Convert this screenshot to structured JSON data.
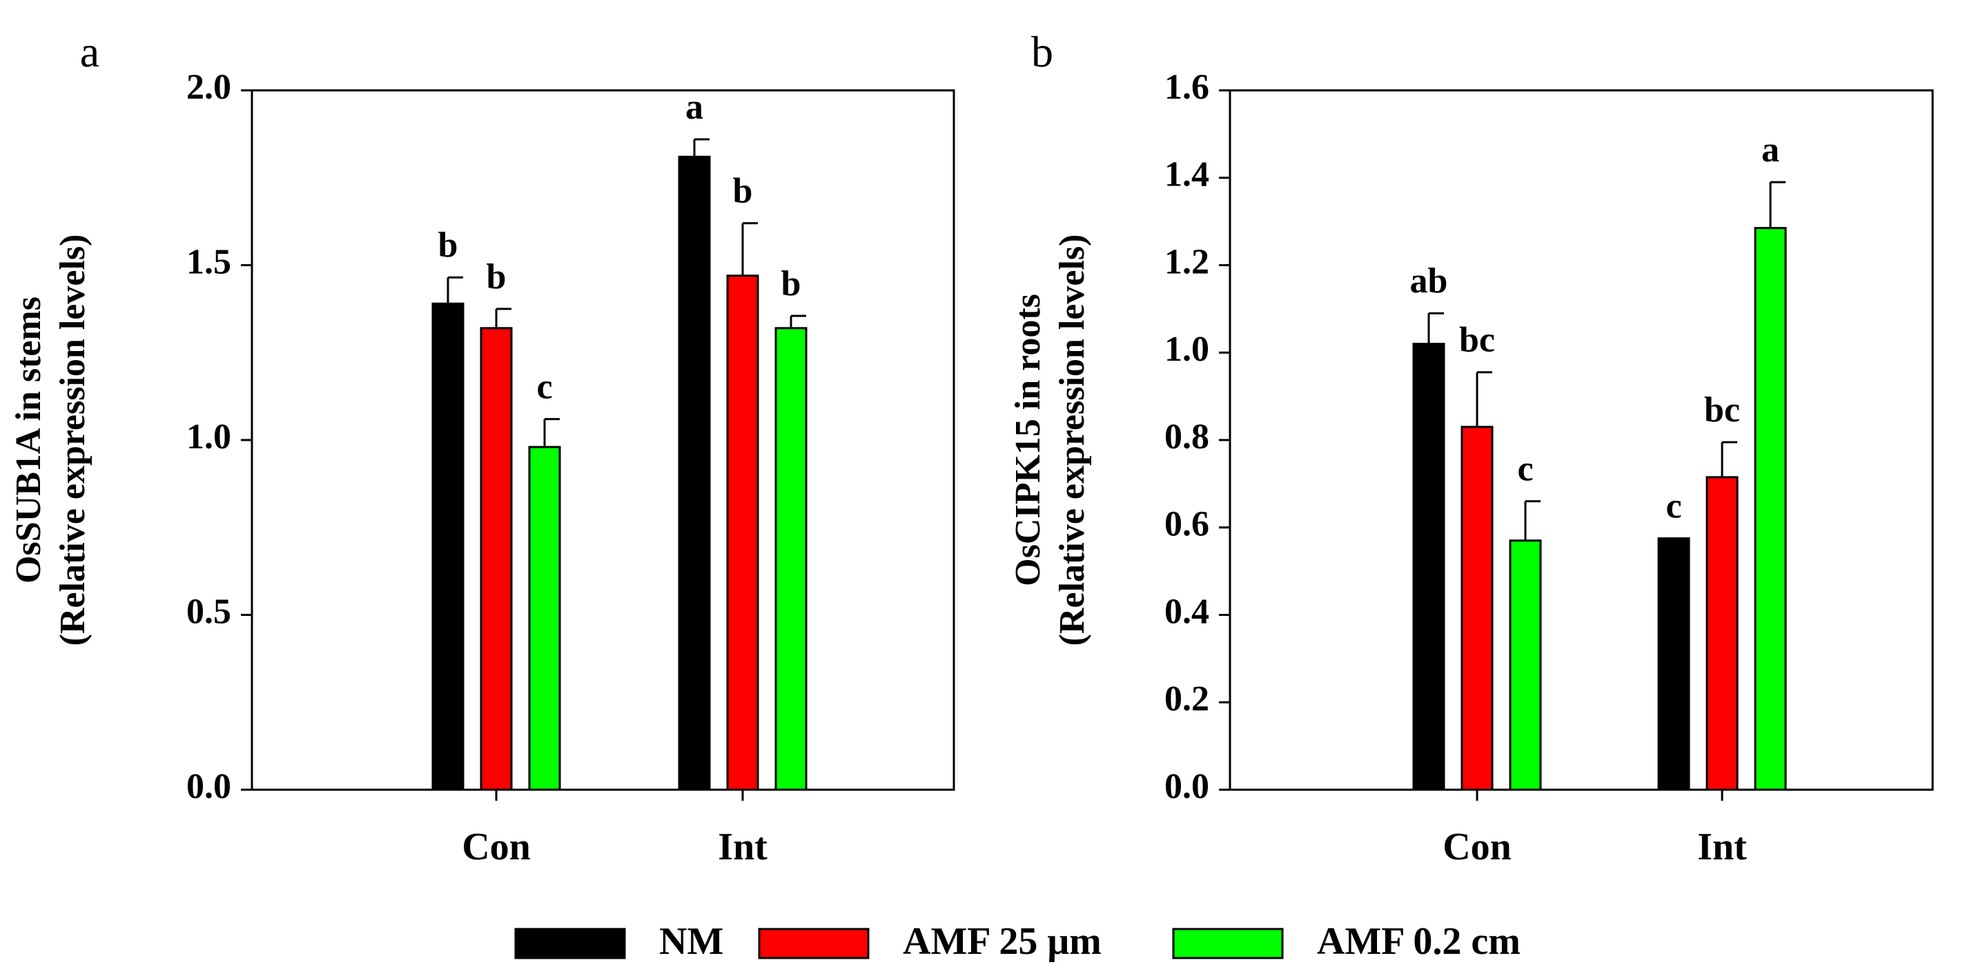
{
  "legend": [
    {
      "name": "NM",
      "color": "#000000"
    },
    {
      "name": "AMF 25 μm",
      "color": "#ff0000"
    },
    {
      "name": "AMF 0.2 cm",
      "color": "#00ff00"
    }
  ],
  "chart_data": [
    {
      "type": "bar",
      "panel": "a",
      "title": "",
      "ylabel_line1": "OsSUB1A in stems",
      "ylabel_line2": "(Relative expression levels)",
      "xlabel": "",
      "categories": [
        "Con",
        "Int"
      ],
      "ylim": [
        0,
        2.0
      ],
      "yticks": [
        "0.0",
        "0.5",
        "1.0",
        "1.5",
        "2.0"
      ],
      "grid": false,
      "series": [
        {
          "name": "NM",
          "color": "#000000",
          "values": [
            1.39,
            1.81
          ],
          "errors": [
            0.075,
            0.05
          ],
          "letters": [
            "b",
            "a"
          ]
        },
        {
          "name": "AMF 25 μm",
          "color": "#ff0000",
          "values": [
            1.32,
            1.47
          ],
          "errors": [
            0.055,
            0.15
          ],
          "letters": [
            "b",
            "b"
          ]
        },
        {
          "name": "AMF 0.2 cm",
          "color": "#00ff00",
          "values": [
            0.98,
            1.32
          ],
          "errors": [
            0.08,
            0.035
          ],
          "letters": [
            "c",
            "b"
          ]
        }
      ]
    },
    {
      "type": "bar",
      "panel": "b",
      "title": "",
      "ylabel_line1": "OsCIPK15 in roots",
      "ylabel_line2": "(Relative expression levels)",
      "xlabel": "",
      "categories": [
        "Con",
        "Int"
      ],
      "ylim": [
        0,
        1.6
      ],
      "yticks": [
        "0.0",
        "0.2",
        "0.4",
        "0.6",
        "0.8",
        "1.0",
        "1.2",
        "1.4",
        "1.6"
      ],
      "grid": false,
      "series": [
        {
          "name": "NM",
          "color": "#000000",
          "values": [
            1.02,
            0.575
          ],
          "errors": [
            0.07,
            0.0
          ],
          "letters": [
            "ab",
            "c"
          ]
        },
        {
          "name": "AMF 25 μm",
          "color": "#ff0000",
          "values": [
            0.83,
            0.715
          ],
          "errors": [
            0.125,
            0.08
          ],
          "letters": [
            "bc",
            "bc"
          ]
        },
        {
          "name": "AMF 0.2 cm",
          "color": "#00ff00",
          "values": [
            0.57,
            1.285
          ],
          "errors": [
            0.09,
            0.105
          ],
          "letters": [
            "c",
            "a"
          ]
        }
      ]
    }
  ]
}
